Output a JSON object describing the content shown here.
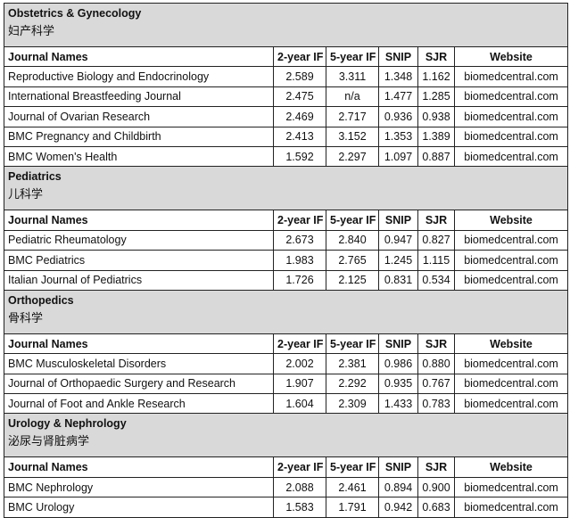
{
  "table": {
    "columns": [
      "Journal Names",
      "2-year IF",
      "5-year IF",
      "SNIP",
      "SJR",
      "Website"
    ],
    "sections": [
      {
        "title": "Obstetrics & Gynecology",
        "subtitle": "妇产科学",
        "rows": [
          [
            "Reproductive Biology and Endocrinology",
            "2.589",
            "3.311",
            "1.348",
            "1.162",
            "biomedcentral.com"
          ],
          [
            "International Breastfeeding Journal",
            "2.475",
            "n/a",
            "1.477",
            "1.285",
            "biomedcentral.com"
          ],
          [
            "Journal of Ovarian Research",
            "2.469",
            "2.717",
            "0.936",
            "0.938",
            "biomedcentral.com"
          ],
          [
            "BMC Pregnancy and Childbirth",
            "2.413",
            "3.152",
            "1.353",
            "1.389",
            "biomedcentral.com"
          ],
          [
            "BMC Women's Health",
            "1.592",
            "2.297",
            "1.097",
            "0.887",
            "biomedcentral.com"
          ]
        ]
      },
      {
        "title": "Pediatrics",
        "subtitle": "儿科学",
        "rows": [
          [
            "Pediatric Rheumatology",
            "2.673",
            "2.840",
            "0.947",
            "0.827",
            "biomedcentral.com"
          ],
          [
            "BMC Pediatrics",
            "1.983",
            "2.765",
            "1.245",
            "1.115",
            "biomedcentral.com"
          ],
          [
            "Italian Journal of Pediatrics",
            "1.726",
            "2.125",
            "0.831",
            "0.534",
            "biomedcentral.com"
          ]
        ]
      },
      {
        "title": "Orthopedics",
        "subtitle": "骨科学",
        "rows": [
          [
            "BMC Musculoskeletal Disorders",
            "2.002",
            "2.381",
            "0.986",
            "0.880",
            "biomedcentral.com"
          ],
          [
            "Journal of Orthopaedic Surgery and Research",
            "1.907",
            "2.292",
            "0.935",
            "0.767",
            "biomedcentral.com"
          ],
          [
            "Journal of Foot and Ankle Research",
            "1.604",
            "2.309",
            "1.433",
            "0.783",
            "biomedcentral.com"
          ]
        ]
      },
      {
        "title": "Urology & Nephrology",
        "subtitle": "泌尿与肾脏病学",
        "rows": [
          [
            "BMC Nephrology",
            "2.088",
            "2.461",
            "0.894",
            "0.900",
            "biomedcentral.com"
          ],
          [
            "BMC Urology",
            "1.583",
            "1.791",
            "0.942",
            "0.683",
            "biomedcentral.com"
          ]
        ]
      }
    ]
  }
}
